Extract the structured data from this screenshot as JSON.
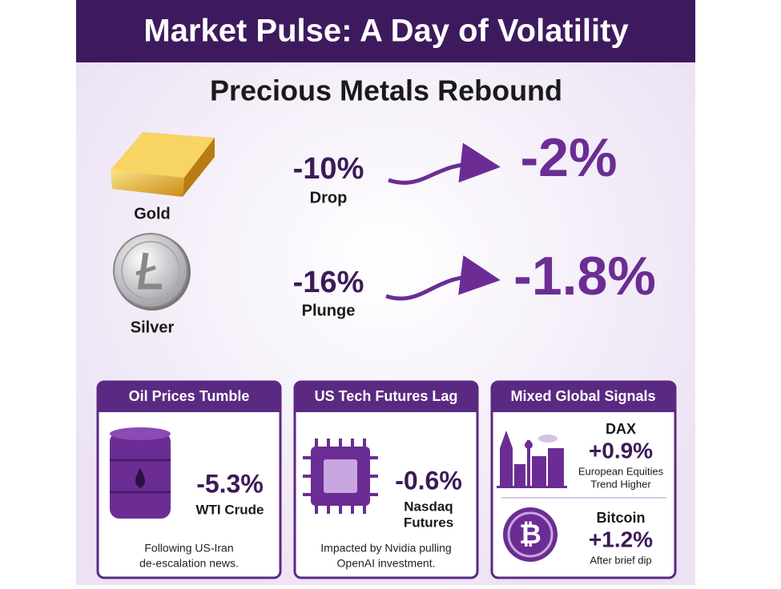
{
  "header": {
    "title": "Market Pulse: A Day of Volatility"
  },
  "metals": {
    "heading": "Precious Metals Rebound",
    "items": [
      {
        "name": "Gold",
        "from": "-10%",
        "from_label": "Drop",
        "to": "-2%"
      },
      {
        "name": "Silver",
        "from": "-16%",
        "from_label": "Plunge",
        "to": "-1.8%"
      }
    ]
  },
  "cards": [
    {
      "title": "Oil Prices Tumble",
      "value": "-5.3%",
      "label": [
        "WTI Crude"
      ],
      "note": [
        "Following US-Iran",
        "de-escalation news."
      ]
    },
    {
      "title": "US Tech Futures Lag",
      "value": "-0.6%",
      "label": [
        "Nasdaq",
        "Futures"
      ],
      "note": [
        "Impacted by Nvidia pulling",
        "OpenAI investment."
      ]
    },
    {
      "title": "Mixed Global Signals",
      "items": [
        {
          "name": "DAX",
          "value": "+0.9%",
          "note": [
            "European Equities",
            "Trend Higher"
          ]
        },
        {
          "name": "Bitcoin",
          "value": "+1.2%",
          "note": [
            "After brief dip"
          ]
        }
      ]
    }
  ]
}
